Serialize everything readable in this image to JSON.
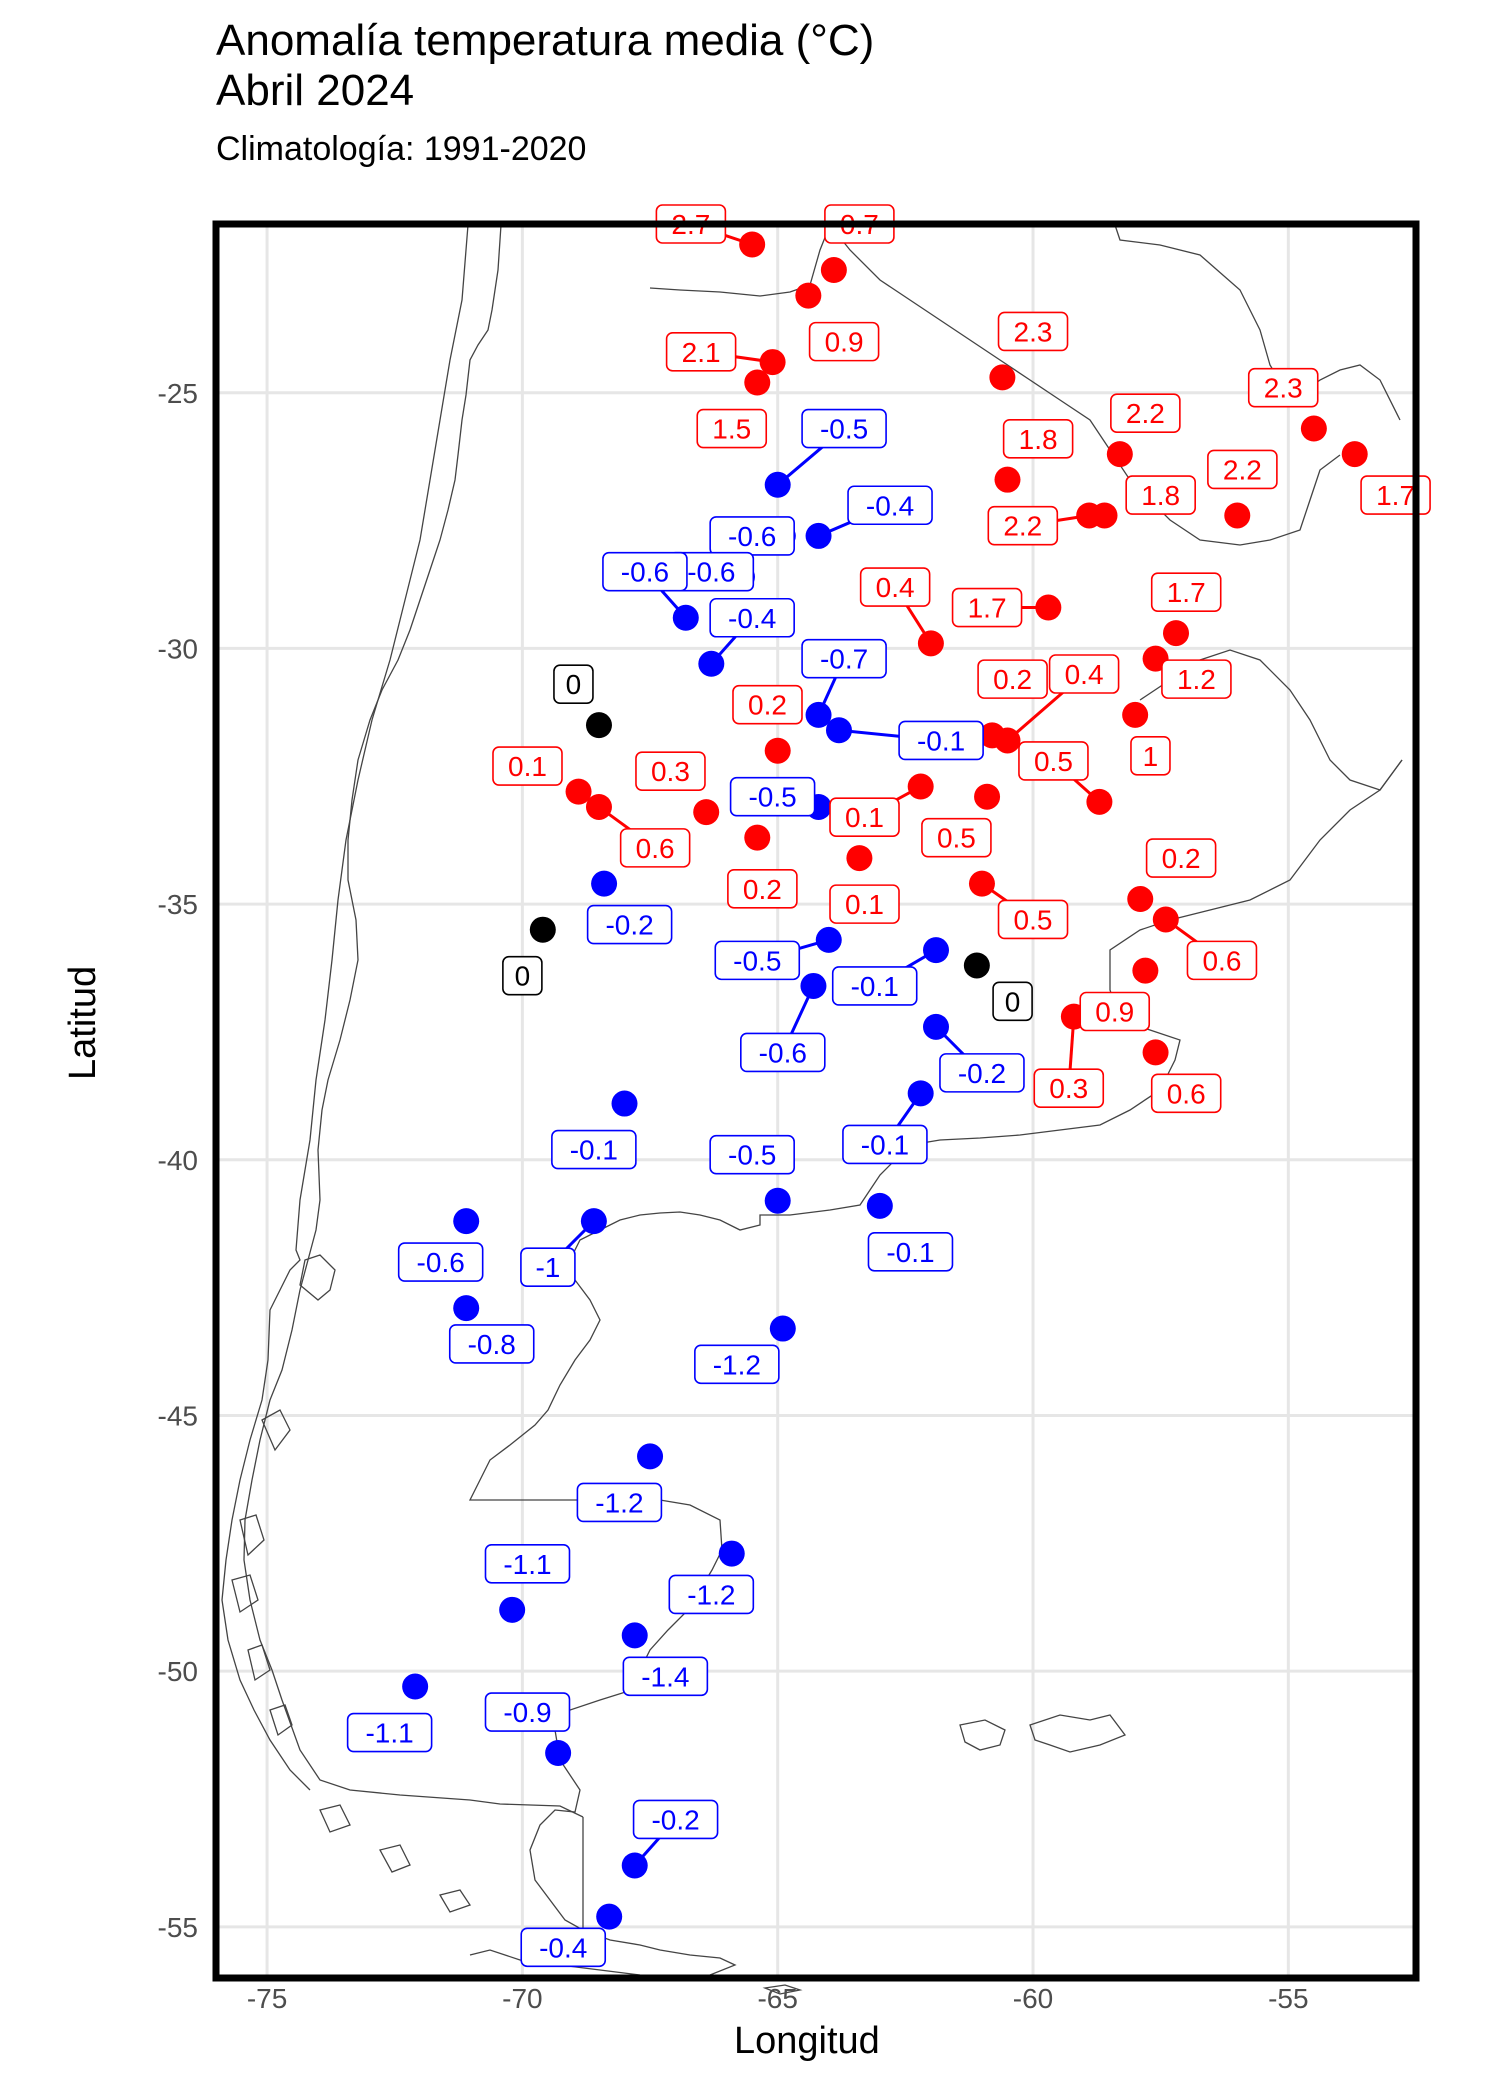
{
  "chart_data": {
    "type": "scatter",
    "title": "Anomalía temperatura media (°C)",
    "title_line2": "Abril 2024",
    "subtitle": "Climatología: 1991-2020",
    "xlabel": "Longitud",
    "ylabel": "Latitud",
    "xlim": [
      -76,
      -52.5
    ],
    "ylim": [
      -56,
      -21.7
    ],
    "x_ticks": [
      -75,
      -70,
      -65,
      -60,
      -55
    ],
    "y_ticks": [
      -25,
      -30,
      -35,
      -40,
      -45,
      -50,
      -55
    ],
    "grid": true,
    "colors": {
      "positive": "#ff0000",
      "negative": "#0000ff",
      "zero": "#000000",
      "coast": "#444444"
    },
    "points": [
      {
        "x": -65.5,
        "y": -22.1,
        "value": "2.7",
        "lx": -66.7,
        "ly": -21.7
      },
      {
        "x": -63.9,
        "y": -22.6,
        "value": "0.7",
        "lx": -63.4,
        "ly": -21.7
      },
      {
        "x": -64.4,
        "y": -23.1,
        "value": "0.9",
        "lx": -63.7,
        "ly": -24.0
      },
      {
        "x": -65.1,
        "y": -24.4,
        "value": "2.1",
        "lx": -66.5,
        "ly": -24.2
      },
      {
        "x": -65.4,
        "y": -24.8,
        "value": "1.5",
        "lx": -65.9,
        "ly": -25.7
      },
      {
        "x": -60.6,
        "y": -24.7,
        "value": "2.3",
        "lx": -60.0,
        "ly": -23.8
      },
      {
        "x": -65.0,
        "y": -26.8,
        "value": "-0.5",
        "lx": -63.7,
        "ly": -25.7
      },
      {
        "x": -64.2,
        "y": -27.8,
        "value": "-0.4",
        "lx": -62.8,
        "ly": -27.2
      },
      {
        "x": -64.9,
        "y": -27.8,
        "value": "-0.6",
        "lx": -65.5,
        "ly": -27.8
      },
      {
        "x": -60.5,
        "y": -26.7,
        "value": "1.8",
        "lx": -59.9,
        "ly": -25.9
      },
      {
        "x": -58.3,
        "y": -26.2,
        "value": "2.2",
        "lx": -57.8,
        "ly": -25.4
      },
      {
        "x": -54.5,
        "y": -25.7,
        "value": "2.3",
        "lx": -55.1,
        "ly": -24.9
      },
      {
        "x": -53.7,
        "y": -26.2,
        "value": "1.7",
        "lx": -52.9,
        "ly": -27.0
      },
      {
        "x": -56.0,
        "y": -27.4,
        "value": "2.2",
        "lx": -55.9,
        "ly": -26.5
      },
      {
        "x": -58.6,
        "y": -27.4,
        "value": "1.8",
        "lx": -57.5,
        "ly": -27.0
      },
      {
        "x": -58.9,
        "y": -27.4,
        "value": "2.2",
        "lx": -60.2,
        "ly": -27.6
      },
      {
        "x": -65.7,
        "y": -28.6,
        "value": "-0.6",
        "lx": -66.3,
        "ly": -28.5
      },
      {
        "x": -66.8,
        "y": -29.4,
        "value": "-0.6",
        "lx": -67.6,
        "ly": -28.5
      },
      {
        "x": -66.3,
        "y": -30.3,
        "value": "-0.4",
        "lx": -65.5,
        "ly": -29.4
      },
      {
        "x": -62.0,
        "y": -29.9,
        "value": "0.4",
        "lx": -62.7,
        "ly": -28.8
      },
      {
        "x": -59.7,
        "y": -29.2,
        "value": "1.7",
        "lx": -60.9,
        "ly": -29.2
      },
      {
        "x": -57.2,
        "y": -29.7,
        "value": "1.7",
        "lx": -57.0,
        "ly": -28.9
      },
      {
        "x": -57.6,
        "y": -30.2,
        "value": "1.2",
        "lx": -56.8,
        "ly": -30.6
      },
      {
        "x": -64.2,
        "y": -31.3,
        "value": "-0.7",
        "lx": -63.7,
        "ly": -30.2
      },
      {
        "x": -63.8,
        "y": -31.6,
        "value": "-0.1",
        "lx": -61.8,
        "ly": -31.8
      },
      {
        "x": -60.8,
        "y": -31.7,
        "value": "0.2",
        "lx": -60.4,
        "ly": -30.6
      },
      {
        "x": -60.5,
        "y": -31.8,
        "value": "0.4",
        "lx": -59.0,
        "ly": -30.5
      },
      {
        "x": -58.0,
        "y": -31.3,
        "value": "1",
        "lx": -57.7,
        "ly": -32.1
      },
      {
        "x": -68.5,
        "y": -31.5,
        "value": "0",
        "lx": -69.0,
        "ly": -30.7
      },
      {
        "x": -65.0,
        "y": -32.0,
        "value": "0.2",
        "lx": -65.2,
        "ly": -31.1
      },
      {
        "x": -68.9,
        "y": -32.8,
        "value": "0.1",
        "lx": -69.9,
        "ly": -32.3
      },
      {
        "x": -68.5,
        "y": -33.1,
        "value": "0.6",
        "lx": -67.4,
        "ly": -33.9
      },
      {
        "x": -66.4,
        "y": -33.2,
        "value": "0.3",
        "lx": -67.1,
        "ly": -32.4
      },
      {
        "x": -64.2,
        "y": -33.1,
        "value": "-0.5",
        "lx": -65.1,
        "ly": -32.9
      },
      {
        "x": -65.4,
        "y": -33.7,
        "value": "0.2",
        "lx": -65.3,
        "ly": -34.7
      },
      {
        "x": -62.2,
        "y": -32.7,
        "value": "0.1",
        "lx": -63.3,
        "ly": -33.3
      },
      {
        "x": -60.9,
        "y": -32.9,
        "value": "0.5",
        "lx": -61.5,
        "ly": -33.7
      },
      {
        "x": -58.7,
        "y": -33.0,
        "value": "0.5",
        "lx": -59.6,
        "ly": -32.2
      },
      {
        "x": -63.4,
        "y": -34.1,
        "value": "0.1",
        "lx": -63.3,
        "ly": -35.0
      },
      {
        "x": -61.0,
        "y": -34.6,
        "value": "0.5",
        "lx": -60.0,
        "ly": -35.3
      },
      {
        "x": -57.9,
        "y": -34.9,
        "value": "0.2",
        "lx": -57.1,
        "ly": -34.1
      },
      {
        "x": -57.4,
        "y": -35.3,
        "value": "0.6",
        "lx": -56.3,
        "ly": -36.1
      },
      {
        "x": -57.8,
        "y": -36.3,
        "value": "0.9",
        "lx": -58.4,
        "ly": -37.1
      },
      {
        "x": -59.2,
        "y": -37.2,
        "value": "0.3",
        "lx": -59.3,
        "ly": -38.6
      },
      {
        "x": -57.6,
        "y": -37.9,
        "value": "0.6",
        "lx": -57.0,
        "ly": -38.7
      },
      {
        "x": -68.4,
        "y": -34.6,
        "value": "-0.2",
        "lx": -67.9,
        "ly": -35.4
      },
      {
        "x": -69.6,
        "y": -35.5,
        "value": "0",
        "lx": -70.0,
        "ly": -36.4
      },
      {
        "x": -64.0,
        "y": -35.7,
        "value": "-0.5",
        "lx": -65.4,
        "ly": -36.1
      },
      {
        "x": -61.9,
        "y": -35.9,
        "value": "-0.1",
        "lx": -63.1,
        "ly": -36.6
      },
      {
        "x": -61.1,
        "y": -36.2,
        "value": "0",
        "lx": -60.4,
        "ly": -36.9
      },
      {
        "x": -64.3,
        "y": -36.6,
        "value": "-0.6",
        "lx": -64.9,
        "ly": -37.9
      },
      {
        "x": -61.9,
        "y": -37.4,
        "value": "-0.2",
        "lx": -61.0,
        "ly": -38.3
      },
      {
        "x": -62.2,
        "y": -38.7,
        "value": "-0.1",
        "lx": -62.9,
        "ly": -39.7
      },
      {
        "x": -68.0,
        "y": -38.9,
        "value": "-0.1",
        "lx": -68.6,
        "ly": -39.8
      },
      {
        "x": -65.0,
        "y": -40.8,
        "value": "-0.5",
        "lx": -65.5,
        "ly": -39.9
      },
      {
        "x": -63.0,
        "y": -40.9,
        "value": "-0.1",
        "lx": -62.4,
        "ly": -41.8
      },
      {
        "x": -71.1,
        "y": -41.2,
        "value": "-0.6",
        "lx": -71.6,
        "ly": -42.0
      },
      {
        "x": -68.6,
        "y": -41.2,
        "value": "-1",
        "lx": -69.5,
        "ly": -42.1
      },
      {
        "x": -71.1,
        "y": -42.9,
        "value": "-0.8",
        "lx": -70.6,
        "ly": -43.6
      },
      {
        "x": -64.9,
        "y": -43.3,
        "value": "-1.2",
        "lx": -65.8,
        "ly": -44.0
      },
      {
        "x": -67.5,
        "y": -45.8,
        "value": "-1.2",
        "lx": -68.1,
        "ly": -46.7
      },
      {
        "x": -65.9,
        "y": -47.7,
        "value": "-1.2",
        "lx": -66.3,
        "ly": -48.5
      },
      {
        "x": -70.2,
        "y": -48.8,
        "value": "-1.1",
        "lx": -69.9,
        "ly": -47.9
      },
      {
        "x": -67.8,
        "y": -49.3,
        "value": "-1.4",
        "lx": -67.2,
        "ly": -50.1
      },
      {
        "x": -72.1,
        "y": -50.3,
        "value": "-1.1",
        "lx": -72.6,
        "ly": -51.2
      },
      {
        "x": -69.3,
        "y": -51.6,
        "value": "-0.9",
        "lx": -69.9,
        "ly": -50.8
      },
      {
        "x": -67.8,
        "y": -53.8,
        "value": "-0.2",
        "lx": -67.0,
        "ly": -52.9
      },
      {
        "x": -68.3,
        "y": -54.8,
        "value": "-0.4",
        "lx": -69.2,
        "ly": -55.4
      }
    ]
  }
}
